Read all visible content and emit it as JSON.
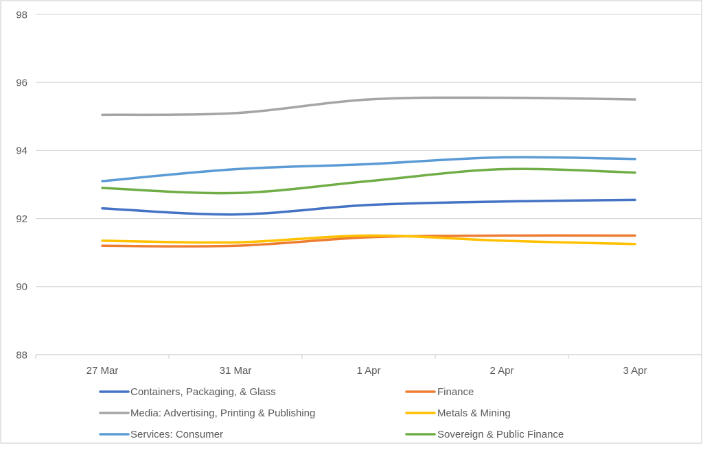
{
  "chart_data": {
    "type": "line",
    "title": "",
    "xlabel": "",
    "ylabel": "",
    "categories": [
      "27 Mar",
      "31 Mar",
      "1 Apr",
      "2 Apr",
      "3 Apr"
    ],
    "series": [
      {
        "name": "Containers, Packaging, & Glass",
        "color": "#4472C4",
        "values": [
          92.3,
          92.12,
          92.4,
          92.5,
          92.55
        ]
      },
      {
        "name": "Finance",
        "color": "#ED7D31",
        "values": [
          91.2,
          91.2,
          91.45,
          91.5,
          91.5
        ]
      },
      {
        "name": "Media: Advertising, Printing & Publishing",
        "color": "#A5A5A5",
        "values": [
          95.05,
          95.1,
          95.5,
          95.55,
          95.5
        ]
      },
      {
        "name": "Metals & Mining",
        "color": "#FFC000",
        "values": [
          91.35,
          91.3,
          91.5,
          91.35,
          91.25
        ]
      },
      {
        "name": "Services: Consumer",
        "color": "#5B9BD5",
        "values": [
          93.1,
          93.45,
          93.6,
          93.8,
          93.75
        ]
      },
      {
        "name": "Sovereign & Public Finance",
        "color": "#70AD47",
        "values": [
          92.9,
          92.75,
          93.1,
          93.45,
          93.35
        ]
      }
    ],
    "ylim": [
      88,
      98
    ],
    "yticks": [
      88,
      90,
      92,
      94,
      96,
      98
    ],
    "grid": "horizontal",
    "smoothed": true,
    "legend_position": "bottom",
    "legend_columns": 2,
    "colors": {
      "axis_text": "#595959",
      "legend_text": "#595959",
      "gridline": "#D9D9D9",
      "axis_line": "#D9D9D9",
      "frame_border": "#D8D8D8",
      "background": "#FFFFFF"
    }
  }
}
